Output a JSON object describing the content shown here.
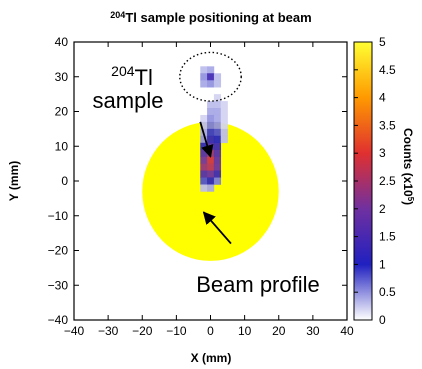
{
  "chart_data": {
    "type": "heatmap",
    "title_superscript": "204",
    "title_rest": "Tl sample positioning at beam",
    "xlabel": "X (mm)",
    "ylabel": "Y (mm)",
    "xlim": [
      -40,
      40
    ],
    "ylim": [
      -40,
      40
    ],
    "x_ticks": [
      "-40",
      "-30",
      "-20",
      "-10",
      "0",
      "10",
      "20",
      "30",
      "40"
    ],
    "y_ticks": [
      "40",
      "30",
      "20",
      "10",
      "0",
      "-10",
      "-20",
      "-30",
      "-40"
    ],
    "colorbar": {
      "label_main": "Counts (x10",
      "label_sup": "5",
      "label_end": ")",
      "ticks": [
        "5",
        "4.5",
        "4",
        "3.5",
        "3",
        "2.5",
        "2",
        "1.5",
        "1",
        "0.5",
        "0"
      ],
      "range": [
        0,
        5
      ],
      "colors": [
        "#ffffff",
        "#2020c0",
        "#7030a0",
        "#e03030",
        "#ff9900",
        "#ffff33"
      ]
    },
    "beam_profile": {
      "center": [
        0,
        -3
      ],
      "radius_mm": 20,
      "color": "#ffff00"
    },
    "dotted_ellipse": {
      "center": [
        0,
        30
      ],
      "rx_mm": 9,
      "ry_mm": 7
    },
    "pixels": [
      {
        "x": -2,
        "y": 32,
        "v": 0.3
      },
      {
        "x": 0,
        "y": 32,
        "v": 0.4
      },
      {
        "x": -2,
        "y": 30,
        "v": 0.5
      },
      {
        "x": 0,
        "y": 30,
        "v": 1.4
      },
      {
        "x": 2,
        "y": 30,
        "v": 0.3
      },
      {
        "x": -2,
        "y": 28,
        "v": 0.4
      },
      {
        "x": 0,
        "y": 28,
        "v": 0.5
      },
      {
        "x": 2,
        "y": 28,
        "v": 0.3
      },
      {
        "x": 2,
        "y": 24,
        "v": 0.2
      },
      {
        "x": 0,
        "y": 22,
        "v": 0.3
      },
      {
        "x": 2,
        "y": 22,
        "v": 0.3
      },
      {
        "x": 4,
        "y": 22,
        "v": 0.2
      },
      {
        "x": 0,
        "y": 20,
        "v": 0.4
      },
      {
        "x": 2,
        "y": 20,
        "v": 0.4
      },
      {
        "x": 4,
        "y": 20,
        "v": 0.2
      },
      {
        "x": -2,
        "y": 18,
        "v": 0.2
      },
      {
        "x": 0,
        "y": 18,
        "v": 0.5
      },
      {
        "x": 2,
        "y": 18,
        "v": 0.4
      },
      {
        "x": 4,
        "y": 18,
        "v": 0.2
      },
      {
        "x": -2,
        "y": 16,
        "v": 0.3
      },
      {
        "x": 0,
        "y": 16,
        "v": 0.6
      },
      {
        "x": 2,
        "y": 16,
        "v": 0.5
      },
      {
        "x": 4,
        "y": 16,
        "v": 0.2
      },
      {
        "x": -2,
        "y": 14,
        "v": 0.4
      },
      {
        "x": 0,
        "y": 14,
        "v": 0.9
      },
      {
        "x": 2,
        "y": 14,
        "v": 0.8
      },
      {
        "x": 4,
        "y": 14,
        "v": 0.3
      },
      {
        "x": -2,
        "y": 12,
        "v": 0.5
      },
      {
        "x": 0,
        "y": 12,
        "v": 1.2
      },
      {
        "x": 2,
        "y": 12,
        "v": 1.0
      },
      {
        "x": 4,
        "y": 12,
        "v": 0.3
      },
      {
        "x": -2,
        "y": 10,
        "v": 1.1
      },
      {
        "x": 0,
        "y": 10,
        "v": 1.5
      },
      {
        "x": 2,
        "y": 10,
        "v": 1.3
      },
      {
        "x": -2,
        "y": 8,
        "v": 1.6
      },
      {
        "x": 0,
        "y": 8,
        "v": 2.3
      },
      {
        "x": 2,
        "y": 8,
        "v": 1.6
      },
      {
        "x": -2,
        "y": 6,
        "v": 2.0
      },
      {
        "x": 0,
        "y": 6,
        "v": 2.8
      },
      {
        "x": 2,
        "y": 6,
        "v": 1.8
      },
      {
        "x": -2,
        "y": 4,
        "v": 2.3
      },
      {
        "x": 0,
        "y": 4,
        "v": 2.6
      },
      {
        "x": 2,
        "y": 4,
        "v": 1.9
      },
      {
        "x": -2,
        "y": 2,
        "v": 1.6
      },
      {
        "x": 0,
        "y": 2,
        "v": 1.9
      },
      {
        "x": 2,
        "y": 2,
        "v": 1.3
      },
      {
        "x": -2,
        "y": 0,
        "v": 0.8
      },
      {
        "x": 0,
        "y": 0,
        "v": 1.1
      },
      {
        "x": 2,
        "y": 0,
        "v": 0.6
      },
      {
        "x": -2,
        "y": -2,
        "v": 0.3
      },
      {
        "x": 0,
        "y": -2,
        "v": 0.4
      }
    ],
    "annotations": [
      {
        "text_sup": "204",
        "text_main": "Tl",
        "text_line2": "sample",
        "arrow_from": [
          -3,
          17
        ],
        "arrow_to": [
          0,
          7
        ]
      },
      {
        "text": "Beam profile",
        "arrow_from": [
          6,
          -18
        ],
        "arrow_to": [
          -2,
          -9
        ]
      }
    ],
    "grid": false,
    "legend": "colorbar-right"
  }
}
